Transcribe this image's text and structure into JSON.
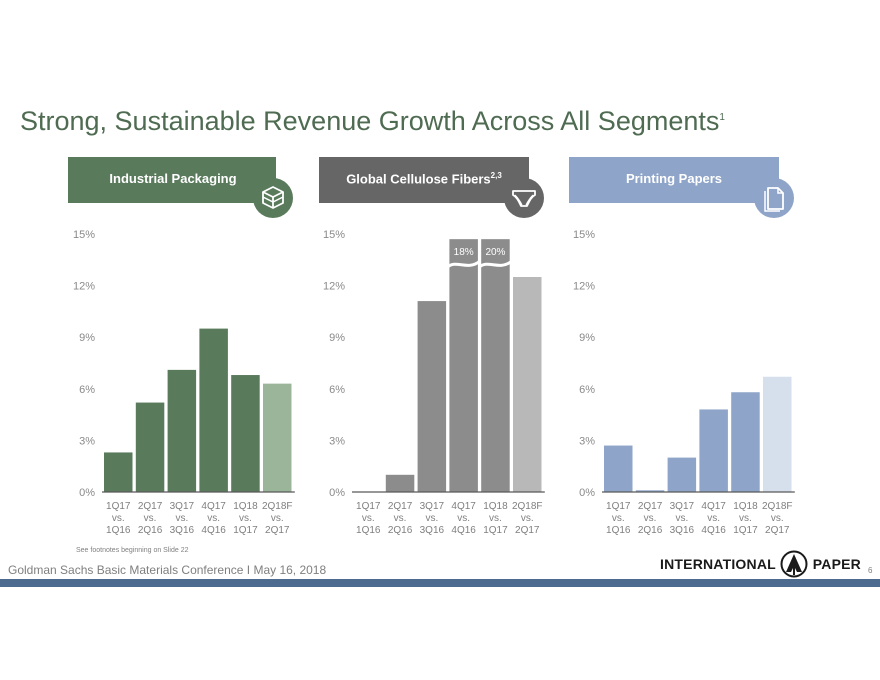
{
  "slide": {
    "title": "Strong, Sustainable Revenue Growth Across All Segments",
    "title_sup": "1",
    "footnote": "See footnotes beginning on Slide 22",
    "footer": "Goldman Sachs Basic Materials Conference I May 16, 2018",
    "logo_left": "INTERNATIONAL",
    "logo_right": "PAPER",
    "page_number": "6"
  },
  "colors": {
    "industrial_header": "#5a7a5c",
    "industrial_bar": "#5a7a5c",
    "industrial_forecast": "#9bb59b",
    "cellulose_header": "#666666",
    "cellulose_bar": "#8c8c8c",
    "cellulose_forecast": "#b8b8b8",
    "printing_header": "#8ea4c8",
    "printing_bar": "#8ea4c8",
    "printing_forecast": "#d6dfec"
  },
  "segments": [
    {
      "key": "industrial",
      "label": "Industrial Packaging",
      "sup": "",
      "icon": "box-icon"
    },
    {
      "key": "cellulose",
      "label": "Global Cellulose Fibers",
      "sup": "2,3",
      "icon": "diaper-icon"
    },
    {
      "key": "printing",
      "label": "Printing Papers",
      "sup": "",
      "icon": "document-icon"
    }
  ],
  "chart_data": [
    {
      "type": "bar",
      "title": "Industrial Packaging",
      "categories_top": [
        "1Q17",
        "2Q17",
        "3Q17",
        "4Q17",
        "1Q18",
        "2Q18F"
      ],
      "categories_mid": [
        "vs.",
        "vs.",
        "vs.",
        "vs.",
        "vs.",
        "vs."
      ],
      "categories_bottom": [
        "1Q16",
        "2Q16",
        "3Q16",
        "4Q16",
        "1Q17",
        "2Q17"
      ],
      "values": [
        2.3,
        5.2,
        7.1,
        9.5,
        6.8,
        6.3
      ],
      "forecast_index": 5,
      "yticks": [
        "0%",
        "3%",
        "6%",
        "9%",
        "12%",
        "15%"
      ],
      "ylim": [
        0,
        15
      ]
    },
    {
      "type": "bar",
      "title": "Global Cellulose Fibers",
      "categories_top": [
        "1Q17",
        "2Q17",
        "3Q17",
        "4Q17",
        "1Q18",
        "2Q18F"
      ],
      "categories_mid": [
        "vs.",
        "vs.",
        "vs.",
        "vs.",
        "vs.",
        "vs."
      ],
      "categories_bottom": [
        "1Q16",
        "2Q16",
        "3Q16",
        "4Q16",
        "1Q17",
        "2Q17"
      ],
      "values": [
        0,
        1.0,
        11.1,
        18,
        20,
        12.5
      ],
      "display_cap": 14.7,
      "data_labels": [
        "",
        "",
        "",
        "18%",
        "20%",
        ""
      ],
      "forecast_index": 5,
      "yticks": [
        "0%",
        "3%",
        "6%",
        "9%",
        "12%",
        "15%"
      ],
      "ylim": [
        0,
        15
      ]
    },
    {
      "type": "bar",
      "title": "Printing Papers",
      "categories_top": [
        "1Q17",
        "2Q17",
        "3Q17",
        "4Q17",
        "1Q18",
        "2Q18F"
      ],
      "categories_mid": [
        "vs.",
        "vs.",
        "vs.",
        "vs.",
        "vs.",
        "vs."
      ],
      "categories_bottom": [
        "1Q16",
        "2Q16",
        "3Q16",
        "4Q16",
        "1Q17",
        "2Q17"
      ],
      "values": [
        2.7,
        0.1,
        2.0,
        4.8,
        5.8,
        6.7
      ],
      "forecast_index": 5,
      "yticks": [
        "0%",
        "3%",
        "6%",
        "9%",
        "12%",
        "15%"
      ],
      "ylim": [
        0,
        15
      ]
    }
  ]
}
